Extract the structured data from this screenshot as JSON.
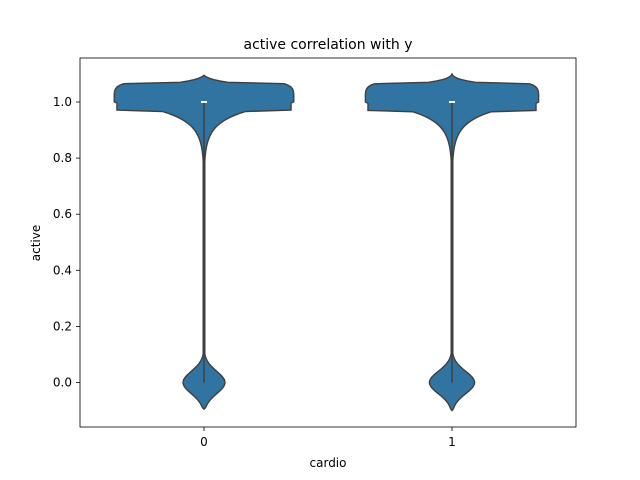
{
  "chart_data": {
    "type": "violin",
    "title": "active correlation with y",
    "xlabel": "cardio",
    "ylabel": "active",
    "categories": [
      "0",
      "1"
    ],
    "ylim": [
      -0.15,
      1.15
    ],
    "yticks": [
      0.0,
      0.2,
      0.4,
      0.6,
      0.8,
      1.0
    ],
    "ytick_labels": [
      "0.0",
      "0.2",
      "0.4",
      "0.6",
      "0.8",
      "1.0"
    ],
    "fill_color": "#3274a1",
    "edge_color": "#3f3f3f",
    "grid": false,
    "legend": "none",
    "violins": [
      {
        "category": "0",
        "median": 1.0,
        "min_extent": -0.095,
        "max_extent": 1.095,
        "low_mode_halfwidth_frac": 0.13,
        "high_mode_halfwidth_frac": 0.57
      },
      {
        "category": "1",
        "median": 1.0,
        "min_extent": -0.1,
        "max_extent": 1.1,
        "low_mode_halfwidth_frac": 0.14,
        "high_mode_halfwidth_frac": 0.55
      }
    ]
  }
}
